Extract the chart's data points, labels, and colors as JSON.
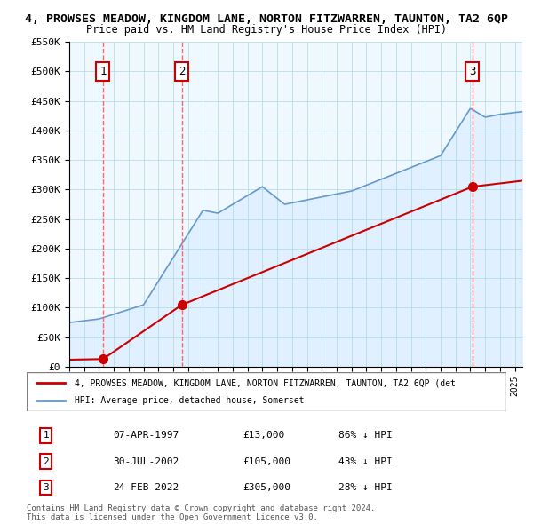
{
  "title": "4, PROWSES MEADOW, KINGDOM LANE, NORTON FITZWARREN, TAUNTON, TA2 6QP",
  "subtitle": "Price paid vs. HM Land Registry's House Price Index (HPI)",
  "ylabel_ticks": [
    "£0",
    "£50K",
    "£100K",
    "£150K",
    "£200K",
    "£250K",
    "£300K",
    "£350K",
    "£400K",
    "£450K",
    "£500K",
    "£550K"
  ],
  "ylim": [
    0,
    550000
  ],
  "sales": [
    {
      "date": 1997.27,
      "price": 13000,
      "label": "1"
    },
    {
      "date": 2002.58,
      "price": 105000,
      "label": "2"
    },
    {
      "date": 2022.15,
      "price": 305000,
      "label": "3"
    }
  ],
  "sale_color": "#cc0000",
  "hpi_color": "#6699cc",
  "hpi_fill_color": "#ddeeff",
  "vline_color": "#ff6666",
  "background_color": "#f0f8ff",
  "legend_items": [
    "4, PROWSES MEADOW, KINGDOM LANE, NORTON FITZWARREN, TAUNTON, TA2 6QP (det",
    "HPI: Average price, detached house, Somerset"
  ],
  "table_rows": [
    {
      "num": "1",
      "date": "07-APR-1997",
      "price": "£13,000",
      "hpi": "86% ↓ HPI"
    },
    {
      "num": "2",
      "date": "30-JUL-2002",
      "price": "£105,000",
      "hpi": "43% ↓ HPI"
    },
    {
      "num": "3",
      "date": "24-FEB-2022",
      "price": "£305,000",
      "hpi": "28% ↓ HPI"
    }
  ],
  "footer": "Contains HM Land Registry data © Crown copyright and database right 2024.\nThis data is licensed under the Open Government Licence v3.0.",
  "xmin": 1995,
  "xmax": 2025.5
}
